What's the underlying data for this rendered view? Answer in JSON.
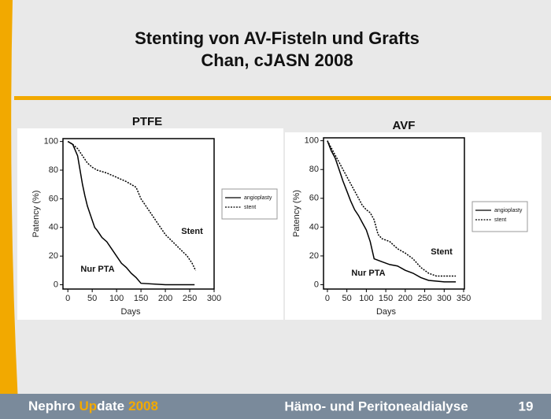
{
  "slide": {
    "title_lines": [
      "Stenting von AV-Fisteln und Grafts",
      "Chan, cJASN 2008"
    ],
    "footer": {
      "brand": [
        "Nephro",
        "Up",
        "date",
        "2008"
      ],
      "topic": "Hämo- und Peritonealdialyse",
      "page": "19"
    }
  },
  "chart_data": [
    {
      "type": "line",
      "title": "PTFE",
      "x_label": "Days",
      "y_label": "Patency (%)",
      "xlim": [
        -10,
        300
      ],
      "xticks": [
        0,
        50,
        100,
        150,
        200,
        250,
        300
      ],
      "ylim": [
        -3,
        102
      ],
      "yticks": [
        0,
        20,
        40,
        60,
        80,
        100
      ],
      "annotations": [
        "Stent",
        "Nur PTA"
      ],
      "series": [
        {
          "name": "angioplasty",
          "color": "#000000",
          "style": "solid",
          "x": [
            0,
            10,
            20,
            25,
            30,
            35,
            40,
            50,
            55,
            60,
            70,
            80,
            90,
            100,
            110,
            120,
            130,
            140,
            150,
            200,
            260
          ],
          "values": [
            100,
            98,
            90,
            80,
            70,
            62,
            55,
            45,
            40,
            38,
            33,
            30,
            25,
            20,
            15,
            12,
            8,
            5,
            1,
            0,
            0
          ]
        },
        {
          "name": "stent",
          "color": "#000000",
          "style": "dotted",
          "x": [
            0,
            10,
            20,
            30,
            40,
            50,
            60,
            80,
            100,
            120,
            140,
            150,
            160,
            170,
            180,
            190,
            200,
            215,
            230,
            245,
            255,
            262
          ],
          "values": [
            100,
            98,
            95,
            90,
            85,
            82,
            80,
            78,
            75,
            72,
            68,
            60,
            55,
            50,
            45,
            40,
            35,
            30,
            25,
            20,
            15,
            10
          ]
        }
      ]
    },
    {
      "type": "line",
      "title": "AVF",
      "x_label": "Days",
      "y_label": "Patency (%)",
      "xlim": [
        -10,
        352
      ],
      "xticks": [
        0,
        50,
        100,
        150,
        200,
        250,
        300,
        350
      ],
      "ylim": [
        -3,
        102
      ],
      "yticks": [
        0,
        20,
        40,
        60,
        80,
        100
      ],
      "annotations": [
        "Stent",
        "Nur PTA"
      ],
      "series": [
        {
          "name": "angioplasty",
          "color": "#000000",
          "style": "solid",
          "x": [
            0,
            10,
            20,
            30,
            40,
            50,
            60,
            70,
            80,
            90,
            100,
            110,
            120,
            140,
            160,
            180,
            200,
            220,
            240,
            260,
            300,
            330
          ],
          "values": [
            100,
            93,
            88,
            80,
            72,
            65,
            58,
            52,
            48,
            43,
            38,
            30,
            18,
            16,
            14,
            13,
            10,
            8,
            5,
            3,
            2,
            2
          ]
        },
        {
          "name": "stent",
          "color": "#000000",
          "style": "dotted",
          "x": [
            0,
            10,
            20,
            30,
            40,
            50,
            60,
            70,
            80,
            90,
            100,
            110,
            120,
            130,
            140,
            160,
            180,
            200,
            220,
            240,
            260,
            280,
            330
          ],
          "values": [
            100,
            95,
            90,
            85,
            80,
            75,
            70,
            65,
            60,
            55,
            52,
            50,
            45,
            35,
            32,
            30,
            25,
            22,
            18,
            12,
            8,
            6,
            6
          ]
        }
      ]
    }
  ]
}
